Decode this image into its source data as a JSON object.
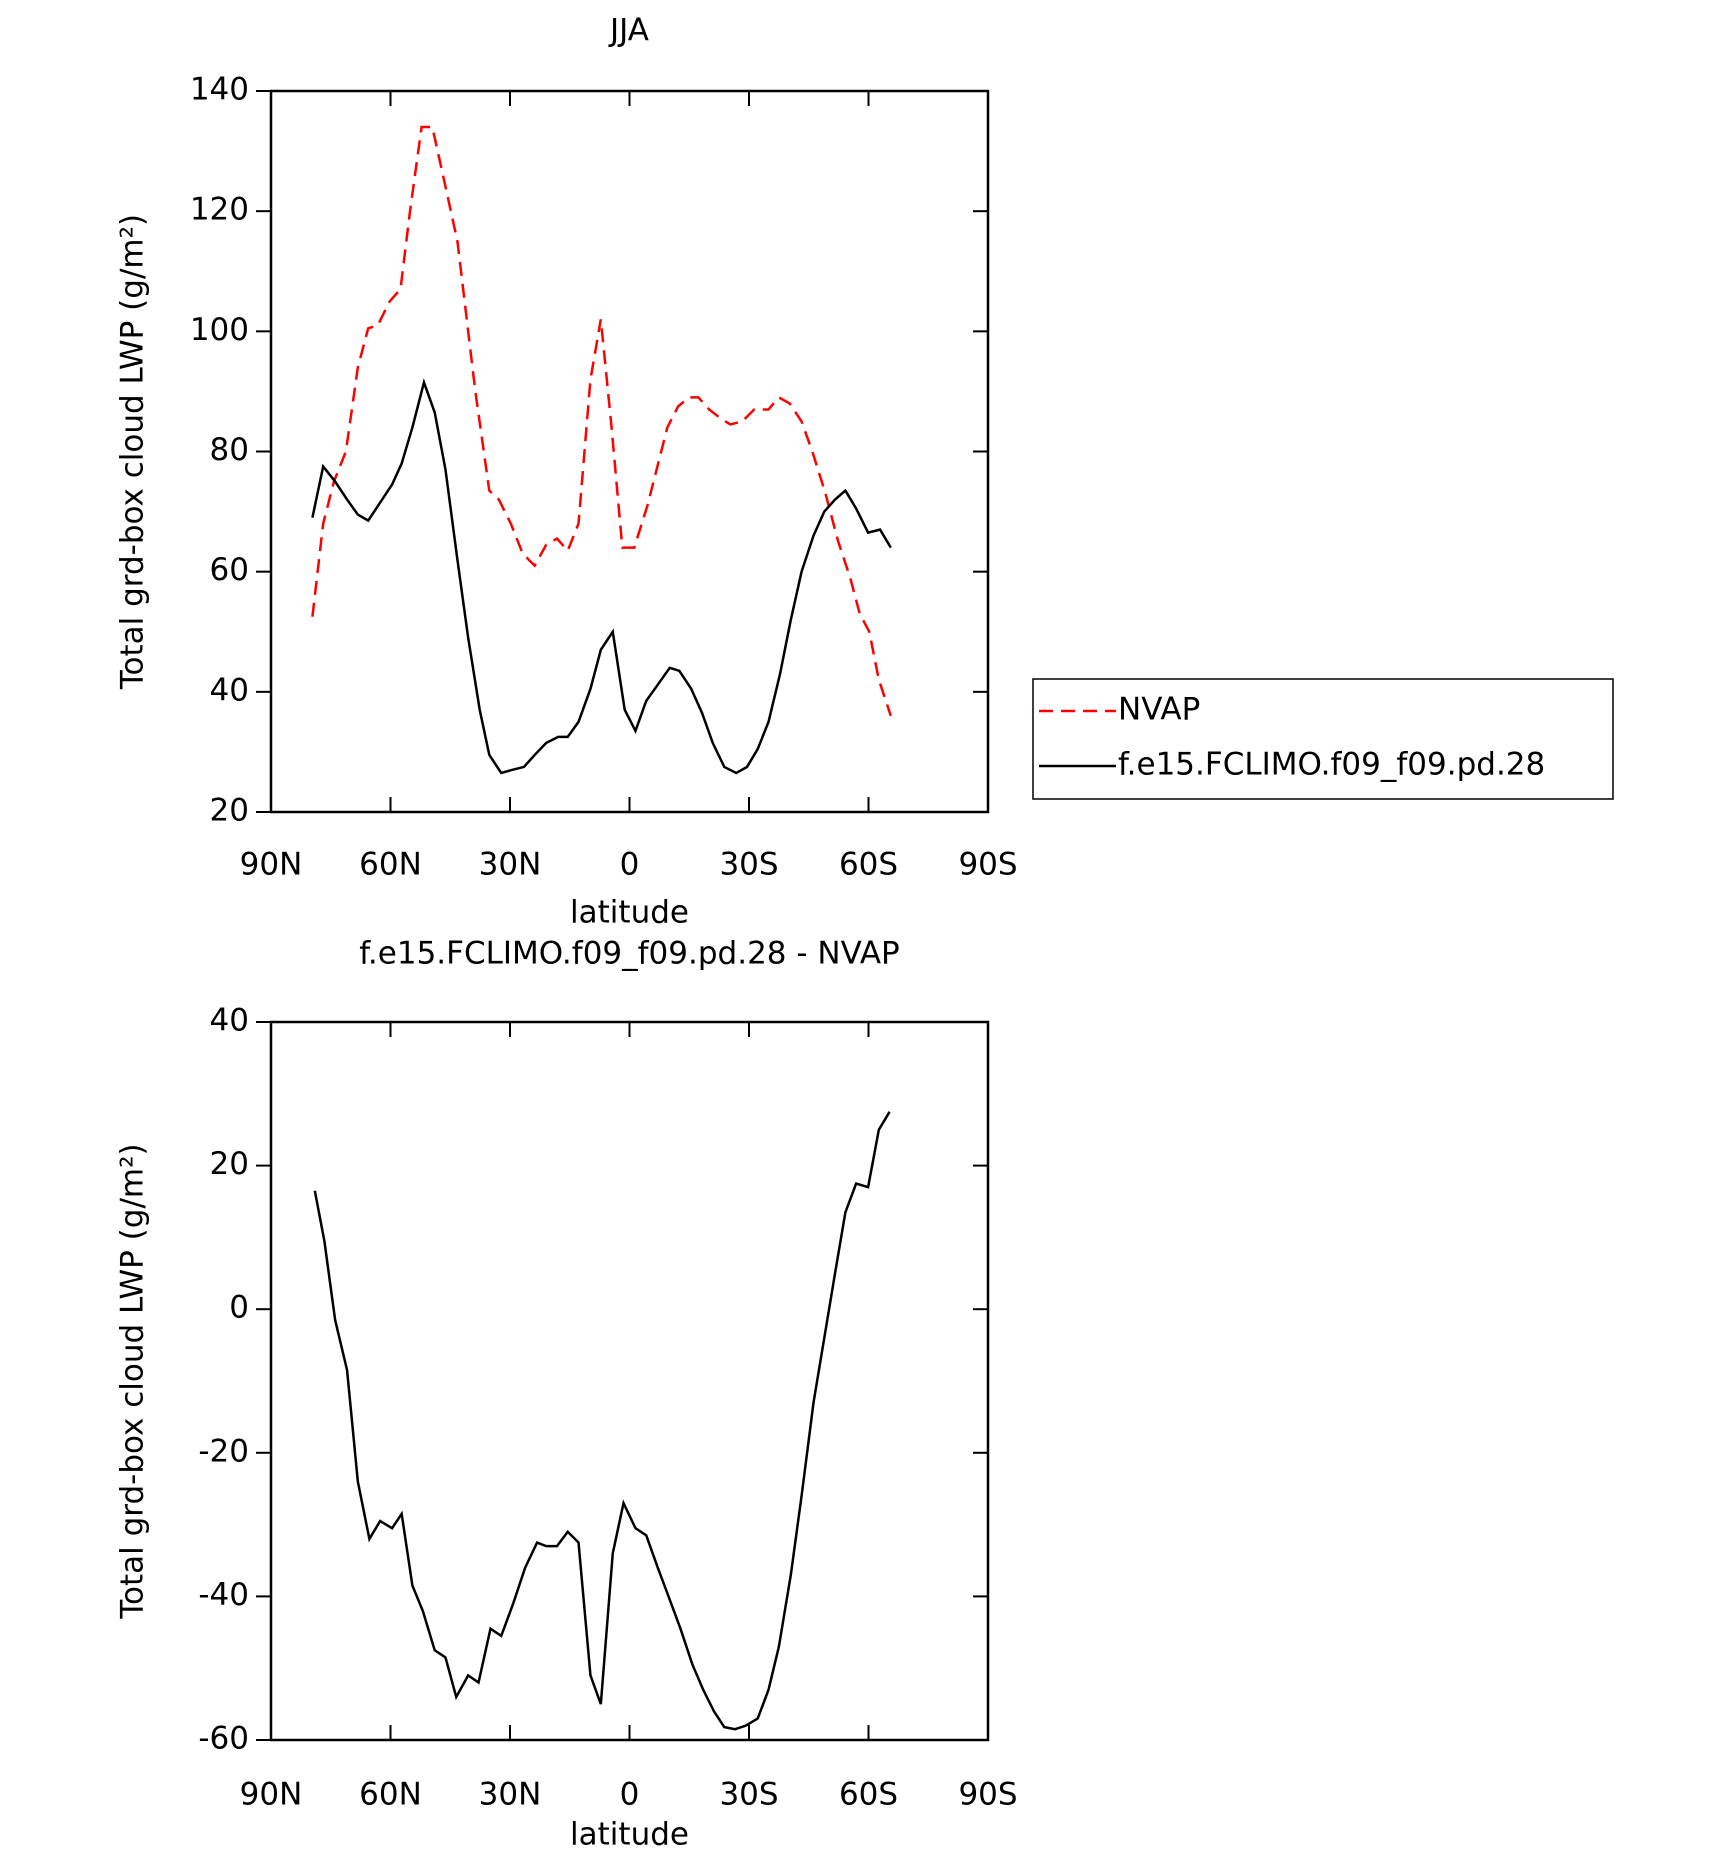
{
  "chart_data": [
    {
      "type": "line",
      "title": "JJA",
      "xlabel": "latitude",
      "ylabel": "Total grd-box cloud LWP (g/m²)",
      "xlim": [
        90,
        -90
      ],
      "xticks": [
        {
          "value": 90,
          "label": "90N"
        },
        {
          "value": 60,
          "label": "60N"
        },
        {
          "value": 30,
          "label": "30N"
        },
        0,
        {
          "value": -30,
          "label": "30S"
        },
        {
          "value": -60,
          "label": "60S"
        },
        {
          "value": -90,
          "label": "90S"
        }
      ],
      "ylim": [
        20,
        140
      ],
      "yticks": [
        20,
        40,
        60,
        80,
        100,
        120,
        140
      ],
      "legend": "right",
      "series": [
        {
          "name": "NVAP",
          "color": "#ff0000",
          "dash": true,
          "x": [
            79.6,
            76.9,
            74.2,
            71.2,
            68.2,
            65.6,
            63.2,
            60.2,
            57.5,
            55.1,
            52.2,
            49.5,
            46.5,
            43.2,
            38.7,
            35.2,
            32.8,
            29.8,
            26.8,
            23.8,
            20.9,
            18.2,
            15.5,
            12.8,
            9.8,
            7.2,
            4.5,
            1.8,
            -1.2,
            -4.5,
            -9.5,
            -12.2,
            -14.9,
            -17.3,
            -20.0,
            -22.9,
            -25.3,
            -28.3,
            -31.3,
            -34.9,
            -37.5,
            -40.2,
            -43.2,
            -45.9,
            -49.2,
            -52.4,
            -55.4,
            -57.8,
            -60.2,
            -62.6,
            -65.6
          ],
          "values": [
            52.5,
            68,
            75,
            80,
            94,
            100.5,
            101,
            105,
            107,
            120,
            134,
            134,
            125,
            115,
            90,
            73.5,
            72,
            68,
            63,
            61,
            64.5,
            65.5,
            63.5,
            68,
            92,
            102,
            84,
            64,
            64,
            71,
            84,
            87.5,
            89,
            89,
            87,
            85.5,
            84.5,
            85,
            87,
            87,
            89,
            88,
            85,
            80,
            73,
            65,
            59,
            53,
            50,
            42,
            36
          ]
        },
        {
          "name": "f.e15.FCLIMO.f09_f09.pd.28",
          "color": "#000000",
          "dash": false,
          "x": [
            79.6,
            76.9,
            73.9,
            70.9,
            68.2,
            65.6,
            62.6,
            59.6,
            57.2,
            54.5,
            51.6,
            48.9,
            46.2,
            43.2,
            40.5,
            37.6,
            35.2,
            32.2,
            29.5,
            26.5,
            23.8,
            20.9,
            17.9,
            15.5,
            12.8,
            9.8,
            7.2,
            4.2,
            1.2,
            -1.5,
            -4.2,
            -6.9,
            -10.1,
            -12.5,
            -15.5,
            -18.2,
            -20.9,
            -23.8,
            -26.8,
            -29.5,
            -32.2,
            -34.9,
            -37.8,
            -40.5,
            -43.2,
            -46.2,
            -48.9,
            -51.6,
            -54.2,
            -56.9,
            -59.9,
            -62.9,
            -65.6
          ],
          "values": [
            69,
            77.5,
            75,
            72,
            69.5,
            68.5,
            71.5,
            74.5,
            78,
            84,
            91.5,
            86.5,
            77,
            62,
            49,
            37,
            29.5,
            26.5,
            27,
            27.5,
            29.5,
            31.5,
            32.5,
            32.5,
            35,
            40.5,
            47,
            50,
            37,
            33.5,
            38.5,
            41,
            44,
            43.5,
            40.5,
            36.5,
            31.5,
            27.5,
            26.5,
            27.5,
            30.5,
            35,
            43,
            52,
            60,
            66,
            70,
            72,
            73.5,
            70.5,
            66.5,
            67,
            64
          ]
        }
      ]
    },
    {
      "type": "line",
      "title": "f.e15.FCLIMO.f09_f09.pd.28 - NVAP",
      "xlabel": "latitude",
      "ylabel": "Total grd-box cloud LWP (g/m²)",
      "xlim": [
        90,
        -90
      ],
      "xticks": [
        {
          "value": 90,
          "label": "90N"
        },
        {
          "value": 60,
          "label": "60N"
        },
        {
          "value": 30,
          "label": "30N"
        },
        0,
        {
          "value": -30,
          "label": "30S"
        },
        {
          "value": -60,
          "label": "60S"
        },
        {
          "value": -90,
          "label": "90S"
        }
      ],
      "ylim": [
        -60,
        40
      ],
      "yticks": [
        -60,
        -40,
        -20,
        0,
        20,
        40
      ],
      "series": [
        {
          "color": "#000000",
          "dash": false,
          "x": [
            79.0,
            76.6,
            73.9,
            70.9,
            68.2,
            65.3,
            62.6,
            59.6,
            57.2,
            54.5,
            51.9,
            48.9,
            46.2,
            43.5,
            40.5,
            37.9,
            34.9,
            32.2,
            29.2,
            26.2,
            23.2,
            20.9,
            18.2,
            15.5,
            12.8,
            9.8,
            7.2,
            4.2,
            1.5,
            -1.5,
            -4.2,
            -7.1,
            -9.8,
            -12.8,
            -15.8,
            -18.5,
            -21.2,
            -23.8,
            -26.5,
            -29.2,
            -32.2,
            -34.9,
            -37.5,
            -40.5,
            -43.2,
            -46.2,
            -48.9,
            -51.6,
            -54.2,
            -56.9,
            -59.9,
            -62.6,
            -65.3
          ],
          "values": [
            16.5,
            9.5,
            -1.5,
            -8.5,
            -24,
            -32,
            -29.5,
            -30.5,
            -28.5,
            -38.5,
            -42,
            -47.5,
            -48.5,
            -54,
            -51,
            -52,
            -44.5,
            -45.5,
            -41,
            -36,
            -32.5,
            -33,
            -33,
            -31,
            -32.5,
            -51,
            -55,
            -34,
            -27,
            -30.5,
            -31.5,
            -36,
            -40,
            -44.5,
            -49.5,
            -53,
            -56,
            -58.2,
            -58.5,
            -58,
            -57,
            -53,
            -47,
            -37,
            -26,
            -13,
            -4,
            5,
            13.5,
            17.5,
            17,
            25,
            27.5
          ]
        }
      ]
    }
  ]
}
